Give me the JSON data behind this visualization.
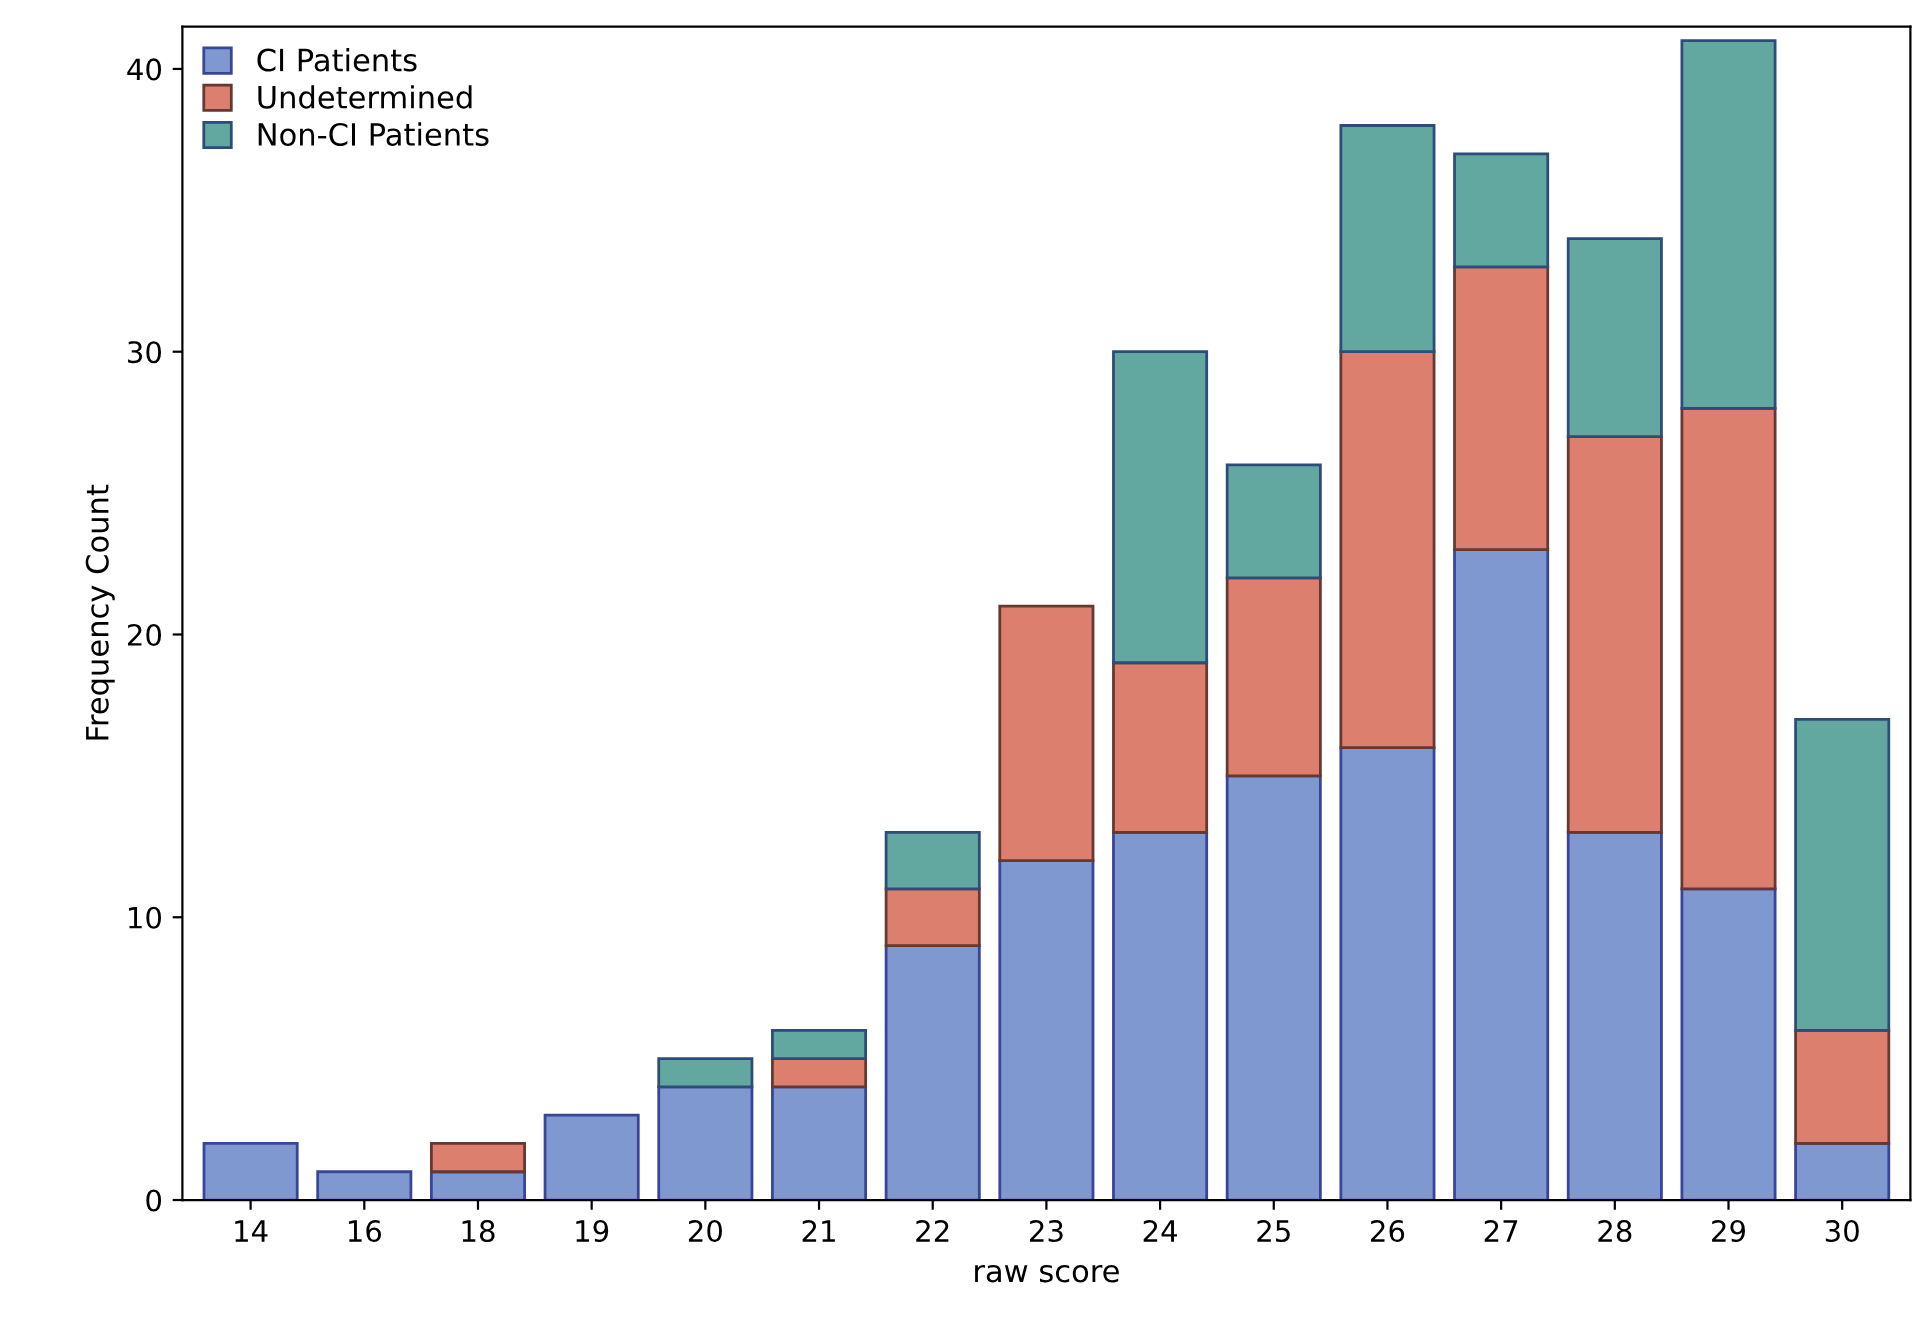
{
  "chart_data": {
    "type": "bar",
    "stacked": true,
    "xlabel": "raw score",
    "ylabel": "Frequency Count",
    "categories": [
      "14",
      "16",
      "18",
      "19",
      "20",
      "21",
      "22",
      "23",
      "24",
      "25",
      "26",
      "27",
      "28",
      "29",
      "30"
    ],
    "series": [
      {
        "name": "CI Patients",
        "color": "#7f98cf",
        "values": [
          2,
          1,
          1,
          3,
          4,
          4,
          9,
          12,
          13,
          15,
          16,
          23,
          13,
          11,
          2
        ]
      },
      {
        "name": "Undetermined",
        "color": "#dd7f6f",
        "values": [
          null,
          null,
          1,
          null,
          null,
          1,
          2,
          9,
          6,
          7,
          14,
          10,
          14,
          17,
          4
        ]
      },
      {
        "name": "Non-CI Patients",
        "color": "#63a8a0",
        "values": [
          null,
          null,
          null,
          null,
          1,
          1,
          2,
          null,
          11,
          4,
          8,
          4,
          7,
          13,
          11
        ]
      }
    ],
    "ylim": [
      0,
      41.5
    ],
    "yticks": [
      0,
      10,
      20,
      30,
      40
    ],
    "legend": "top left",
    "grid": false
  }
}
